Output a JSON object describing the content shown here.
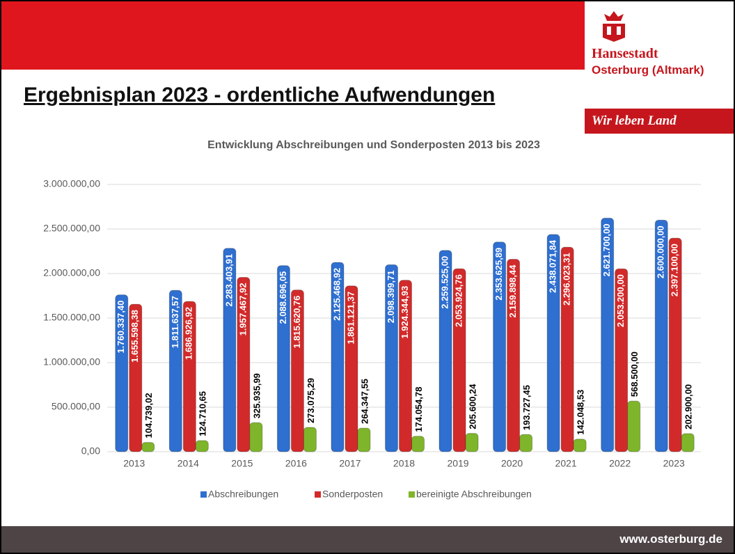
{
  "header": {
    "title": "Ergebnisplan 2023 - ordentliche Aufwendungen",
    "logo_name": "Hansestadt",
    "logo_place": "Osterburg (Altmark)",
    "slogan": "Wir leben Land"
  },
  "footer": {
    "url": "www.osterburg.de"
  },
  "chart_data": {
    "type": "bar",
    "title": "Entwicklung Abschreibungen und Sonderposten 2013 bis 2023",
    "categories": [
      "2013",
      "2014",
      "2015",
      "2016",
      "2017",
      "2018",
      "2019",
      "2020",
      "2021",
      "2022",
      "2023"
    ],
    "series": [
      {
        "name": "Abschreibungen",
        "color": "#2e6fd0",
        "values": [
          1760337.4,
          1811637.57,
          2283403.91,
          2088696.05,
          2125468.92,
          2098399.71,
          2259525.0,
          2353625.89,
          2438071.84,
          2621700.0,
          2600000.0
        ],
        "value_labels": [
          "1.760.337,40",
          "1.811.637,57",
          "2.283.403,91",
          "2.088.696,05",
          "2.125.468,92",
          "2.098.399,71",
          "2.259.525,00",
          "2.353.625,89",
          "2.438.071,84",
          "2.621.700,00",
          "2.600.000,00"
        ]
      },
      {
        "name": "Sonderposten",
        "color": "#d22a2a",
        "values": [
          1655598.38,
          1686926.92,
          1957467.92,
          1815620.76,
          1861121.37,
          1924344.93,
          2053924.76,
          2159898.44,
          2296023.31,
          2053200.0,
          2397100.0
        ],
        "value_labels": [
          "1.655.598,38",
          "1.686.926,92",
          "1.957.467,92",
          "1.815.620,76",
          "1.861.121,37",
          "1.924.344,93",
          "2.053.924,76",
          "2.159.898,44",
          "2.296.023,31",
          "2.053.200,00",
          "2.397.100,00"
        ]
      },
      {
        "name": "bereinigte Abschreibungen",
        "color": "#7fb52a",
        "values": [
          104739.02,
          124710.65,
          325935.99,
          273075.29,
          264347.55,
          174054.78,
          205600.24,
          193727.45,
          142048.53,
          568500.0,
          202900.0
        ],
        "value_labels": [
          "104.739,02",
          "124.710,65",
          "325.935,99",
          "273.075,29",
          "264.347,55",
          "174.054,78",
          "205.600,24",
          "193.727,45",
          "142.048,53",
          "568.500,00",
          "202.900,00"
        ]
      }
    ],
    "ylim": [
      0,
      3000000
    ],
    "yticks": [
      {
        "value": 0,
        "label": "0,00"
      },
      {
        "value": 500000,
        "label": "500.000,00"
      },
      {
        "value": 1000000,
        "label": "1.000.000,00"
      },
      {
        "value": 1500000,
        "label": "1.500.000,00"
      },
      {
        "value": 2000000,
        "label": "2.000.000,00"
      },
      {
        "value": 2500000,
        "label": "2.500.000,00"
      },
      {
        "value": 3000000,
        "label": "3.000.000,00"
      }
    ],
    "grid": true,
    "legend": "bottom"
  }
}
